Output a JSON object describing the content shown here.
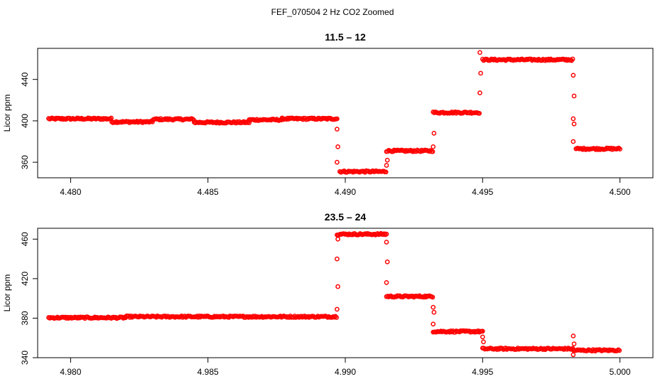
{
  "title": "FEF_070504  2 Hz CO2 Zoomed",
  "chart_data": [
    {
      "type": "scatter",
      "title": "11.5 – 12",
      "xlabel": "",
      "ylabel": "Licor ppm",
      "xlim": [
        4.4788,
        4.5012
      ],
      "ylim": [
        345,
        470
      ],
      "xticks": [
        4.48,
        4.485,
        4.49,
        4.495,
        4.5
      ],
      "xtick_labels": [
        "4.480",
        "4.485",
        "4.490",
        "4.495",
        "4.500"
      ],
      "yticks": [
        360,
        400,
        440
      ],
      "ytick_labels": [
        "360",
        "400",
        "440"
      ],
      "grid": false,
      "marker": "open-circle",
      "color": "#ff0000",
      "plateaus": [
        {
          "x_start": 4.4792,
          "x_end": 4.4815,
          "y": 402
        },
        {
          "x_start": 4.4815,
          "x_end": 4.483,
          "y": 399
        },
        {
          "x_start": 4.483,
          "x_end": 4.4845,
          "y": 401.5
        },
        {
          "x_start": 4.4845,
          "x_end": 4.4865,
          "y": 398.5
        },
        {
          "x_start": 4.4865,
          "x_end": 4.4877,
          "y": 401
        },
        {
          "x_start": 4.4877,
          "x_end": 4.4897,
          "y": 402
        },
        {
          "x_start": 4.4898,
          "x_end": 4.4915,
          "y": 351
        },
        {
          "x_start": 4.4915,
          "x_end": 4.4932,
          "y": 371
        },
        {
          "x_start": 4.4932,
          "x_end": 4.4949,
          "y": 408
        },
        {
          "x_start": 4.495,
          "x_end": 4.4983,
          "y": 459
        },
        {
          "x_start": 4.4984,
          "x_end": 4.5,
          "y": 373
        }
      ],
      "transitions": [
        {
          "x": 4.4897,
          "y": [
            392,
            375,
            360
          ]
        },
        {
          "x": 4.4915,
          "y": [
            357,
            362
          ]
        },
        {
          "x": 4.4932,
          "y": [
            375,
            388
          ]
        },
        {
          "x": 4.4949,
          "y": [
            427,
            446,
            466
          ]
        },
        {
          "x": 4.4983,
          "y": [
            444,
            424,
            402,
            397,
            380
          ]
        }
      ]
    },
    {
      "type": "scatter",
      "title": "23.5 – 24",
      "xlabel": "",
      "ylabel": "Licor ppm",
      "xlim": [
        4.9788,
        5.0012
      ],
      "ylim": [
        340,
        471
      ],
      "xticks": [
        4.98,
        4.985,
        4.99,
        4.995,
        5.0
      ],
      "xtick_labels": [
        "4.980",
        "4.985",
        "4.990",
        "4.995",
        "5.000"
      ],
      "yticks": [
        340,
        380,
        420,
        460
      ],
      "ytick_labels": [
        "340",
        "380",
        "420",
        "460"
      ],
      "grid": false,
      "marker": "open-circle",
      "color": "#ff0000",
      "plateaus": [
        {
          "x_start": 4.9792,
          "x_end": 4.982,
          "y": 380.5
        },
        {
          "x_start": 4.982,
          "x_end": 4.9897,
          "y": 381.5
        },
        {
          "x_start": 4.9897,
          "x_end": 4.9915,
          "y": 465
        },
        {
          "x_start": 4.9915,
          "x_end": 4.9932,
          "y": 402
        },
        {
          "x_start": 4.9932,
          "x_end": 4.995,
          "y": 366.5
        },
        {
          "x_start": 4.995,
          "x_end": 4.9983,
          "y": 349
        },
        {
          "x_start": 4.9983,
          "x_end": 5.0,
          "y": 347.5
        }
      ],
      "transitions": [
        {
          "x": 4.9897,
          "y": [
            389,
            412,
            440,
            460
          ]
        },
        {
          "x": 4.9915,
          "y": [
            457,
            437,
            416
          ]
        },
        {
          "x": 4.9932,
          "y": [
            391,
            386,
            374
          ]
        },
        {
          "x": 4.995,
          "y": [
            361,
            356
          ]
        },
        {
          "x": 4.9983,
          "y": [
            362,
            354,
            343
          ]
        }
      ]
    }
  ]
}
